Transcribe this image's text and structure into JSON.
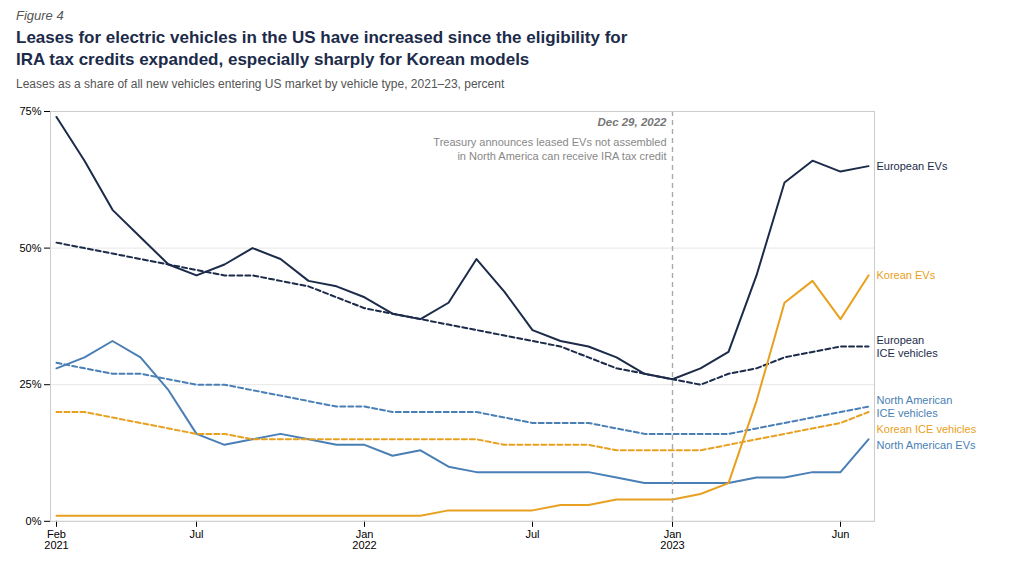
{
  "chart_data": {
    "type": "line",
    "figure_label": "Figure 4",
    "title": "Leases for electric vehicles in the US have increased since the eligibility for\nIRA tax credits expanded, especially sharply for Korean models",
    "subtitle": "Leases as a share of all new vehicles entering US market by vehicle type, 2021–23, percent",
    "categories": [
      "Feb\n2021",
      null,
      null,
      null,
      null,
      "Jul",
      null,
      null,
      null,
      null,
      null,
      "Jan\n2022",
      null,
      null,
      null,
      null,
      null,
      "Jul",
      null,
      null,
      null,
      null,
      "Jan\n2023",
      null,
      null,
      null,
      null,
      null,
      "Jun",
      null
    ],
    "series": [
      {
        "name": "European EVs",
        "color": "#1c2b4a",
        "line_style": "solid",
        "values": [
          74,
          66,
          57,
          52,
          47,
          45,
          47,
          50,
          48,
          44,
          43,
          41,
          38,
          37,
          40,
          48,
          42,
          35,
          33,
          32,
          30,
          27,
          26,
          28,
          31,
          45,
          62,
          66,
          64,
          65
        ]
      },
      {
        "name": "European\nICE vehicles",
        "color": "#1c2b4a",
        "line_style": "dashed",
        "values": [
          51,
          50,
          49,
          48,
          47,
          46,
          45,
          45,
          44,
          43,
          41,
          39,
          38,
          37,
          36,
          35,
          34,
          33,
          32,
          30,
          28,
          27,
          26,
          25,
          27,
          28,
          30,
          31,
          32,
          32
        ]
      },
      {
        "name": "North American\nICE vehicles",
        "color": "#4a7fb5",
        "line_style": "dashed",
        "values": [
          29,
          28,
          27,
          27,
          26,
          25,
          25,
          24,
          23,
          22,
          21,
          21,
          20,
          20,
          20,
          20,
          19,
          18,
          18,
          18,
          17,
          16,
          16,
          16,
          16,
          17,
          18,
          19,
          20,
          21
        ]
      },
      {
        "name": "North American EVs",
        "color": "#4a7fb5",
        "line_style": "solid",
        "values": [
          28,
          30,
          33,
          30,
          24,
          16,
          14,
          15,
          16,
          15,
          14,
          14,
          12,
          13,
          10,
          9,
          9,
          9,
          9,
          9,
          8,
          7,
          7,
          7,
          7,
          8,
          8,
          9,
          9,
          15
        ]
      },
      {
        "name": "Korean ICE vehicles",
        "color": "#e8a020",
        "line_style": "dashed",
        "values": [
          20,
          20,
          19,
          18,
          17,
          16,
          16,
          15,
          15,
          15,
          15,
          15,
          15,
          15,
          15,
          15,
          14,
          14,
          14,
          14,
          13,
          13,
          13,
          13,
          14,
          15,
          16,
          17,
          18,
          20
        ]
      },
      {
        "name": "Korean EVs",
        "color": "#e8a020",
        "line_style": "solid",
        "values": [
          1,
          1,
          1,
          1,
          1,
          1,
          1,
          1,
          1,
          1,
          1,
          1,
          1,
          1,
          2,
          2,
          2,
          2,
          3,
          3,
          4,
          4,
          4,
          5,
          7,
          22,
          40,
          44,
          37,
          45
        ]
      }
    ],
    "ylim": [
      0,
      75
    ],
    "yticks": [
      {
        "value": 0,
        "label": "0%"
      },
      {
        "value": 25,
        "label": "25%"
      },
      {
        "value": 50,
        "label": "50%"
      },
      {
        "value": 75,
        "label": "75%"
      }
    ],
    "grid": true,
    "annotations": [
      {
        "x": "Jan\n2023",
        "line_style": "dashed",
        "title": "Dec 29, 2022",
        "text": "Treasury announces leased EVs not assembled\nin North America can receive IRA tax credit"
      }
    ]
  }
}
